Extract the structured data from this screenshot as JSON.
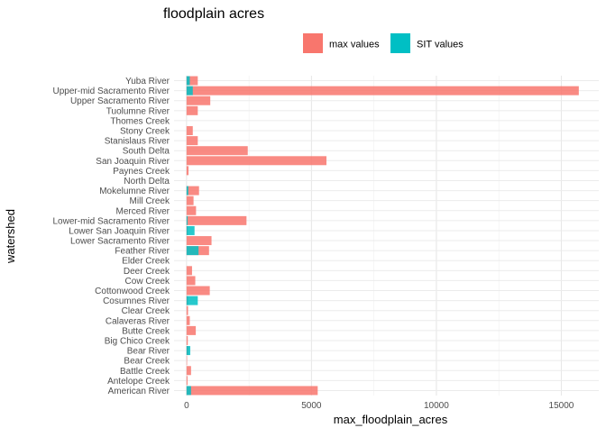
{
  "chart_data": {
    "type": "bar",
    "orientation": "horizontal",
    "title": "floodplain acres",
    "xlabel": "max_floodplain_acres",
    "ylabel": "watershed",
    "xlim": [
      -500,
      16500
    ],
    "x_ticks": [
      0,
      5000,
      10000,
      15000
    ],
    "x_tick_labels": [
      "0",
      "5000",
      "10000",
      "15000"
    ],
    "grid": true,
    "legend_position": "top",
    "categories": [
      "Yuba River",
      "Upper-mid Sacramento River",
      "Upper Sacramento River",
      "Tuolumne River",
      "Thomes Creek",
      "Stony Creek",
      "Stanislaus River",
      "South Delta",
      "San Joaquin River",
      "Paynes Creek",
      "North Delta",
      "Mokelumne River",
      "Mill Creek",
      "Merced River",
      "Lower-mid Sacramento River",
      "Lower San Joaquin River",
      "Lower Sacramento River",
      "Feather River",
      "Elder Creek",
      "Deer Creek",
      "Cow Creek",
      "Cottonwood Creek",
      "Cosumnes River",
      "Clear Creek",
      "Calaveras River",
      "Butte Creek",
      "Big Chico Creek",
      "Bear River",
      "Bear Creek",
      "Battle Creek",
      "Antelope Creek",
      "American River"
    ],
    "series": [
      {
        "name": "max values",
        "color": "#F8766D",
        "values": [
          450,
          15700,
          950,
          450,
          0,
          250,
          450,
          2450,
          5600,
          80,
          0,
          500,
          280,
          380,
          2400,
          50,
          1000,
          900,
          0,
          220,
          350,
          930,
          60,
          60,
          130,
          370,
          50,
          80,
          20,
          180,
          40,
          5250
        ]
      },
      {
        "name": "SIT values",
        "color": "#00BFC4",
        "values": [
          130,
          250,
          0,
          0,
          0,
          0,
          0,
          0,
          0,
          0,
          0,
          70,
          0,
          0,
          40,
          320,
          0,
          480,
          0,
          0,
          0,
          0,
          450,
          0,
          0,
          0,
          0,
          150,
          0,
          0,
          0,
          180
        ]
      }
    ]
  }
}
